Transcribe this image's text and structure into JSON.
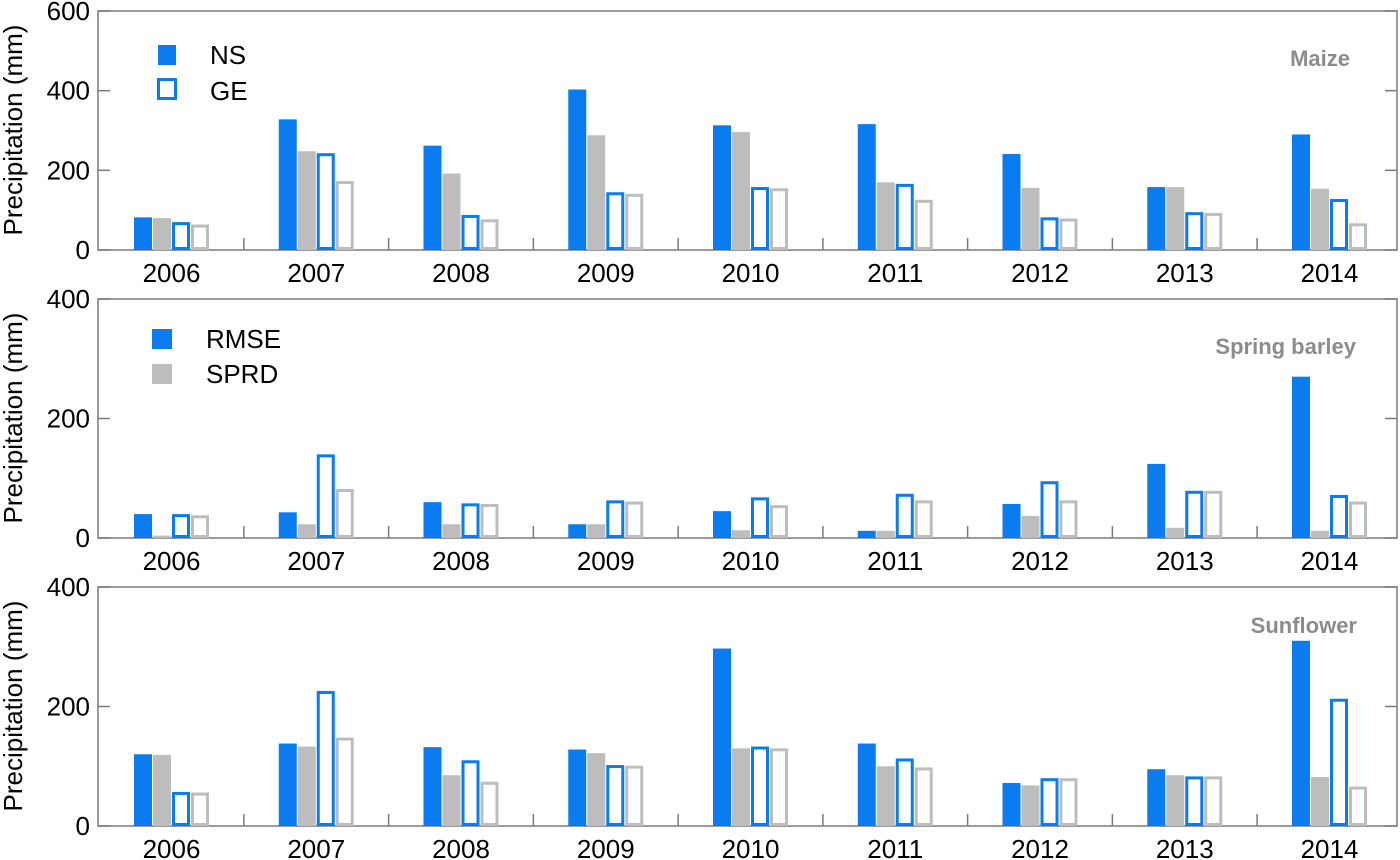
{
  "colors": {
    "rmse": "#0a7cf0",
    "sprd": "#bdbdbd",
    "axis": "#7a7a7a",
    "crop_label": "#8c8c8c"
  },
  "legend_method": {
    "ns_label": "NS",
    "ge_label": "GE"
  },
  "legend_metric": {
    "rmse_label": "RMSE",
    "sprd_label": "SPRD"
  },
  "chart_data": [
    {
      "type": "bar",
      "crop_label": "Maize",
      "ylabel": "Precipitation (mm)",
      "ylim": [
        0,
        600
      ],
      "yticks": [
        0,
        200,
        400,
        600
      ],
      "categories": [
        "2006",
        "2007",
        "2008",
        "2009",
        "2010",
        "2011",
        "2012",
        "2013",
        "2014"
      ],
      "series": [
        {
          "name": "NS RMSE",
          "method": "NS",
          "metric": "RMSE",
          "values": [
            82,
            328,
            262,
            403,
            313,
            316,
            241,
            158,
            290
          ]
        },
        {
          "name": "NS SPRD",
          "method": "NS",
          "metric": "SPRD",
          "values": [
            80,
            248,
            192,
            288,
            296,
            170,
            156,
            158,
            154
          ]
        },
        {
          "name": "GE RMSE",
          "method": "GE",
          "metric": "RMSE",
          "values": [
            70,
            243,
            88,
            145,
            158,
            166,
            82,
            95,
            128
          ]
        },
        {
          "name": "GE SPRD",
          "method": "GE",
          "metric": "SPRD",
          "values": [
            64,
            173,
            77,
            141,
            155,
            126,
            79,
            93,
            67
          ]
        }
      ],
      "legend": "top-left"
    },
    {
      "type": "bar",
      "crop_label": "Spring barley",
      "ylabel": "Precipitation (mm)",
      "ylim": [
        0,
        400
      ],
      "yticks": [
        0,
        200,
        400
      ],
      "categories": [
        "2006",
        "2007",
        "2008",
        "2009",
        "2010",
        "2011",
        "2012",
        "2013",
        "2014"
      ],
      "series": [
        {
          "name": "NS RMSE",
          "method": "NS",
          "metric": "RMSE",
          "values": [
            40,
            43,
            60,
            23,
            45,
            12,
            57,
            124,
            270
          ]
        },
        {
          "name": "NS SPRD",
          "method": "NS",
          "metric": "SPRD",
          "values": [
            4,
            23,
            23,
            23,
            13,
            12,
            37,
            17,
            12
          ]
        },
        {
          "name": "GE RMSE",
          "method": "GE",
          "metric": "RMSE",
          "values": [
            40,
            140,
            58,
            63,
            68,
            74,
            95,
            79,
            72
          ]
        },
        {
          "name": "GE SPRD",
          "method": "GE",
          "metric": "SPRD",
          "values": [
            38,
            82,
            57,
            61,
            55,
            63,
            63,
            79,
            61
          ]
        }
      ],
      "legend": "top-left"
    },
    {
      "type": "bar",
      "crop_label": "Sunflower",
      "ylabel": "Precipitation (mm)",
      "ylim": [
        0,
        400
      ],
      "yticks": [
        0,
        200,
        400
      ],
      "categories": [
        "2006",
        "2007",
        "2008",
        "2009",
        "2010",
        "2011",
        "2012",
        "2013",
        "2014"
      ],
      "series": [
        {
          "name": "NS RMSE",
          "method": "NS",
          "metric": "RMSE",
          "values": [
            120,
            138,
            132,
            128,
            297,
            138,
            72,
            95,
            310
          ]
        },
        {
          "name": "NS SPRD",
          "method": "NS",
          "metric": "SPRD",
          "values": [
            119,
            133,
            85,
            122,
            130,
            100,
            68,
            85,
            82
          ]
        },
        {
          "name": "GE RMSE",
          "method": "GE",
          "metric": "RMSE",
          "values": [
            57,
            226,
            110,
            102,
            133,
            113,
            80,
            83,
            213
          ]
        },
        {
          "name": "GE SPRD",
          "method": "GE",
          "metric": "SPRD",
          "values": [
            56,
            148,
            74,
            101,
            130,
            98,
            80,
            83,
            66
          ]
        }
      ]
    }
  ]
}
